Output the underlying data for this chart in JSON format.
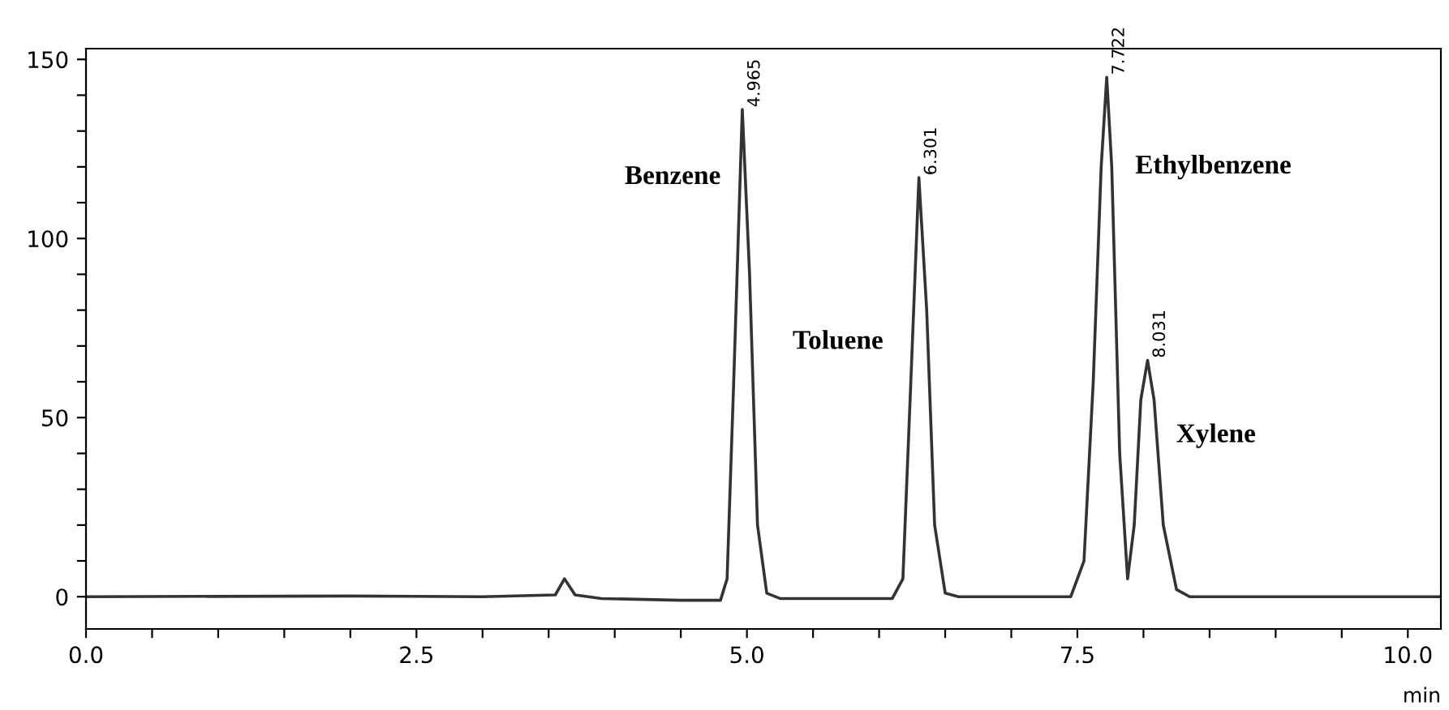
{
  "chart_data": {
    "type": "line",
    "xlabel": "min",
    "x": [
      0,
      2.0,
      3.0,
      3.55,
      3.62,
      3.7,
      3.9,
      4.5,
      4.8,
      4.85,
      4.9,
      4.965,
      5.02,
      5.08,
      5.15,
      5.25,
      6.1,
      6.18,
      6.24,
      6.301,
      6.36,
      6.42,
      6.5,
      6.6,
      7.45,
      7.55,
      7.62,
      7.68,
      7.722,
      7.76,
      7.82,
      7.88,
      7.93,
      7.98,
      8.031,
      8.08,
      8.15,
      8.25,
      8.35,
      10.25
    ],
    "series": [
      {
        "color": "#333333",
        "values": [
          0,
          0.2,
          0,
          0.5,
          5,
          0.5,
          -0.5,
          -1,
          -1,
          5,
          60,
          136,
          90,
          20,
          1,
          -0.5,
          -0.5,
          5,
          60,
          117,
          80,
          20,
          1,
          0,
          0,
          10,
          60,
          120,
          145,
          120,
          40,
          5,
          20,
          55,
          66,
          55,
          20,
          2,
          0,
          0
        ]
      }
    ],
    "xlim": [
      0,
      10.25
    ],
    "ylim": [
      -9,
      153
    ],
    "xticks": [
      {
        "value": 0,
        "label": "0.0"
      },
      {
        "value": 0.5,
        "label": null
      },
      {
        "value": 1.0,
        "label": null
      },
      {
        "value": 1.5,
        "label": null
      },
      {
        "value": 2.0,
        "label": null
      },
      2.5,
      {
        "value": 3.0,
        "label": null
      },
      {
        "value": 3.5,
        "label": null
      },
      {
        "value": 4.0,
        "label": null
      },
      {
        "value": 4.5,
        "label": null
      },
      {
        "value": 5,
        "label": "5.0"
      },
      {
        "value": 5.5,
        "label": null
      },
      {
        "value": 6.0,
        "label": null
      },
      {
        "value": 6.5,
        "label": null
      },
      {
        "value": 7.0,
        "label": null
      },
      7.5,
      {
        "value": 8.0,
        "label": null
      },
      {
        "value": 8.5,
        "label": null
      },
      {
        "value": 9.0,
        "label": null
      },
      {
        "value": 9.5,
        "label": null
      },
      {
        "value": 10,
        "label": "10.0"
      }
    ],
    "yticks": [
      0,
      {
        "value": 10,
        "label": null
      },
      {
        "value": 20,
        "label": null
      },
      {
        "value": 30,
        "label": null
      },
      {
        "value": 40,
        "label": null
      },
      50,
      {
        "value": 60,
        "label": null
      },
      {
        "value": 70,
        "label": null
      },
      {
        "value": 80,
        "label": null
      },
      {
        "value": 90,
        "label": null
      },
      100,
      {
        "value": 110,
        "label": null
      },
      {
        "value": 120,
        "label": null
      },
      {
        "value": 130,
        "label": null
      },
      {
        "value": 140,
        "label": null
      },
      150
    ],
    "grid": false,
    "legend": false,
    "marker": "none",
    "line_style": "solid",
    "annotations": [
      {
        "text": "4.965",
        "x": 4.965,
        "y": 136
      },
      {
        "text": "6.301",
        "x": 6.301,
        "y": 117
      },
      {
        "text": "7.722",
        "x": 7.722,
        "y": 145
      },
      {
        "text": "8.031",
        "x": 8.031,
        "y": 66
      },
      "Benzene",
      "Toluene",
      "Ethylbenzene",
      "Xylene"
    ]
  }
}
